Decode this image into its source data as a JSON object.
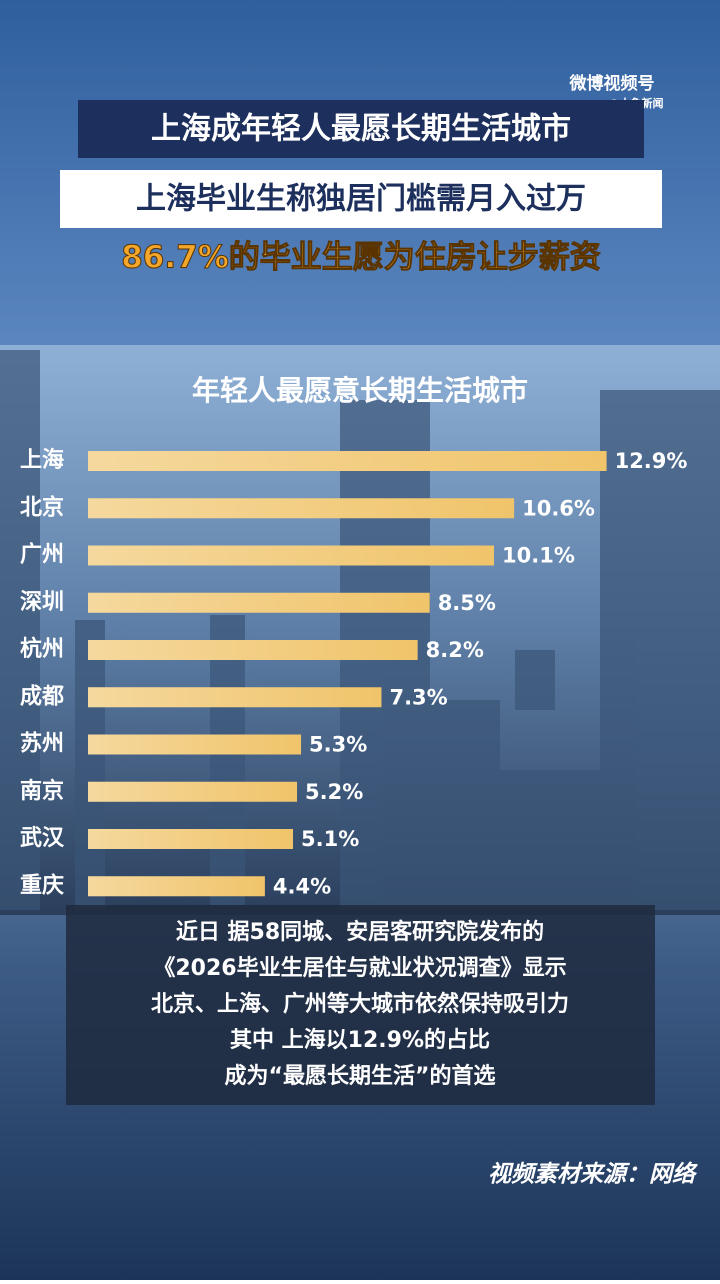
{
  "headlines": [
    "上海成年轻人最愿长期生活城市",
    "上海毕业生称独居门槛需月入过万",
    "86.7%的毕业生愿为住房让步薪资"
  ],
  "watermark": {
    "platform": "微博视频号",
    "account": "@大象新闻"
  },
  "chart_data": {
    "type": "bar",
    "title": "年轻人最愿意长期生活城市",
    "categories": [
      "上海",
      "北京",
      "广州",
      "深圳",
      "杭州",
      "成都",
      "苏州",
      "南京",
      "武汉",
      "重庆"
    ],
    "values": [
      12.9,
      10.6,
      10.1,
      8.5,
      8.2,
      7.3,
      5.3,
      5.2,
      5.1,
      4.4
    ],
    "value_labels": [
      "12.9%",
      "10.6%",
      "10.1%",
      "8.5%",
      "8.2%",
      "7.3%",
      "5.3%",
      "5.2%",
      "5.1%",
      "4.4%"
    ],
    "color": "#f0c46a"
  },
  "caption": [
    "近日 据58同城、安居客研究院发布的",
    "《2026毕业生居住与就业状况调查》显示",
    "北京、上海、广州等大城市依然保持吸引力",
    "其中 上海以12.9%的占比",
    "成为“最愿长期生活”的首选"
  ],
  "source": "视频素材来源：网络"
}
